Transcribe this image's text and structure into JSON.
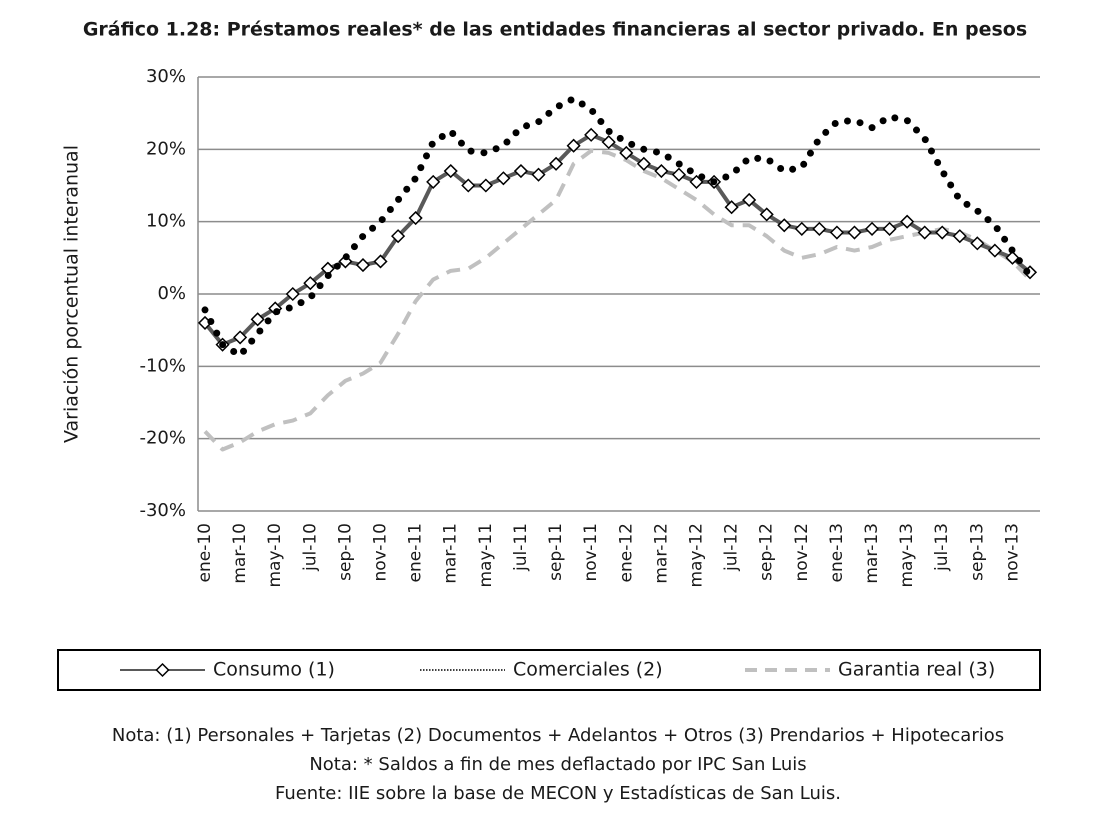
{
  "chart_data": {
    "type": "line",
    "title": "Gráfico 1.28: Préstamos reales* de las entidades financieras al sector privado. En pesos",
    "y_label": "Variación porcentual interanual",
    "categories": [
      "ene-10",
      null,
      "mar-10",
      null,
      "may-10",
      null,
      "jul-10",
      null,
      "sep-10",
      null,
      "nov-10",
      null,
      "ene-11",
      null,
      "mar-11",
      null,
      "may-11",
      null,
      "jul-11",
      null,
      "sep-11",
      null,
      "nov-11",
      null,
      "ene-12",
      null,
      "mar-12",
      null,
      "may-12",
      null,
      "jul-12",
      null,
      "sep-12",
      null,
      "nov-12",
      null,
      "ene-13",
      null,
      "mar-13",
      null,
      "may-13",
      null,
      "jul-13",
      null,
      "sep-13",
      null,
      "nov-13",
      null
    ],
    "ylim": [
      -30,
      30
    ],
    "yticks": [
      {
        "value": -30,
        "label": "-30%"
      },
      {
        "value": -20,
        "label": "-20%"
      },
      {
        "value": -10,
        "label": "-10%"
      },
      {
        "value": 0,
        "label": "0%"
      },
      {
        "value": 10,
        "label": "10%"
      },
      {
        "value": 20,
        "label": "20%"
      },
      {
        "value": 30,
        "label": "30%"
      }
    ],
    "grid": true,
    "legend": "bottom",
    "series": [
      {
        "name": "Consumo (1)",
        "color": "#595959",
        "style": "solid",
        "marker": "diamond",
        "values": [
          -4,
          -7,
          -6,
          -3.5,
          -2,
          0,
          1.5,
          3.5,
          4.5,
          4,
          4.5,
          8,
          10.5,
          15.5,
          17,
          15,
          15,
          16,
          17,
          16.5,
          18,
          20.5,
          22,
          21,
          19.5,
          18,
          17,
          16.5,
          15.5,
          15.5,
          12,
          13,
          11,
          9.5,
          9,
          9,
          8.5,
          8.5,
          9,
          9,
          10,
          8.5,
          8.5,
          8,
          7,
          6,
          5,
          3
        ]
      },
      {
        "name": "Comerciales (2)",
        "color": "#000000",
        "style": "dotted",
        "values": [
          -2.2,
          -7,
          -8.5,
          -5.5,
          -2.5,
          -1.8,
          -0.5,
          2.5,
          5,
          8,
          10,
          13,
          16,
          21,
          22.5,
          19.8,
          19.5,
          20.5,
          23,
          23.8,
          25.8,
          27,
          25.5,
          22.5,
          21,
          20,
          19.5,
          18,
          16.5,
          15.5,
          16.5,
          18.8,
          18.7,
          17,
          17.5,
          21.5,
          23.8,
          24,
          23,
          24.5,
          24,
          21.5,
          17,
          13,
          11.5,
          9.5,
          6,
          2.5
        ]
      },
      {
        "name": "Garantia real (3)",
        "color": "#c0c0c0",
        "style": "dashed",
        "values": [
          -19,
          -21.5,
          -20.5,
          -19,
          -18,
          -17.5,
          -16.5,
          -14,
          -12,
          -11,
          -9.5,
          -5.5,
          -1,
          2,
          3.2,
          3.5,
          5,
          7,
          9,
          11,
          13,
          18,
          19.8,
          19.5,
          18.5,
          17,
          16,
          14.5,
          13,
          11,
          9.5,
          9.5,
          8,
          6,
          5,
          5.5,
          6.5,
          6,
          6.5,
          7.5,
          8,
          8.5,
          9,
          8.5,
          7.5,
          6,
          4.5,
          2
        ]
      }
    ],
    "notes": [
      "Nota: (1) Personales + Tarjetas  (2) Documentos + Adelantos + Otros  (3) Prendarios + Hipotecarios",
      "Nota: * Saldos a fin de mes deflactado por IPC San Luis",
      "Fuente: IIE sobre la base de MECON y Estadísticas de San Luis."
    ]
  }
}
